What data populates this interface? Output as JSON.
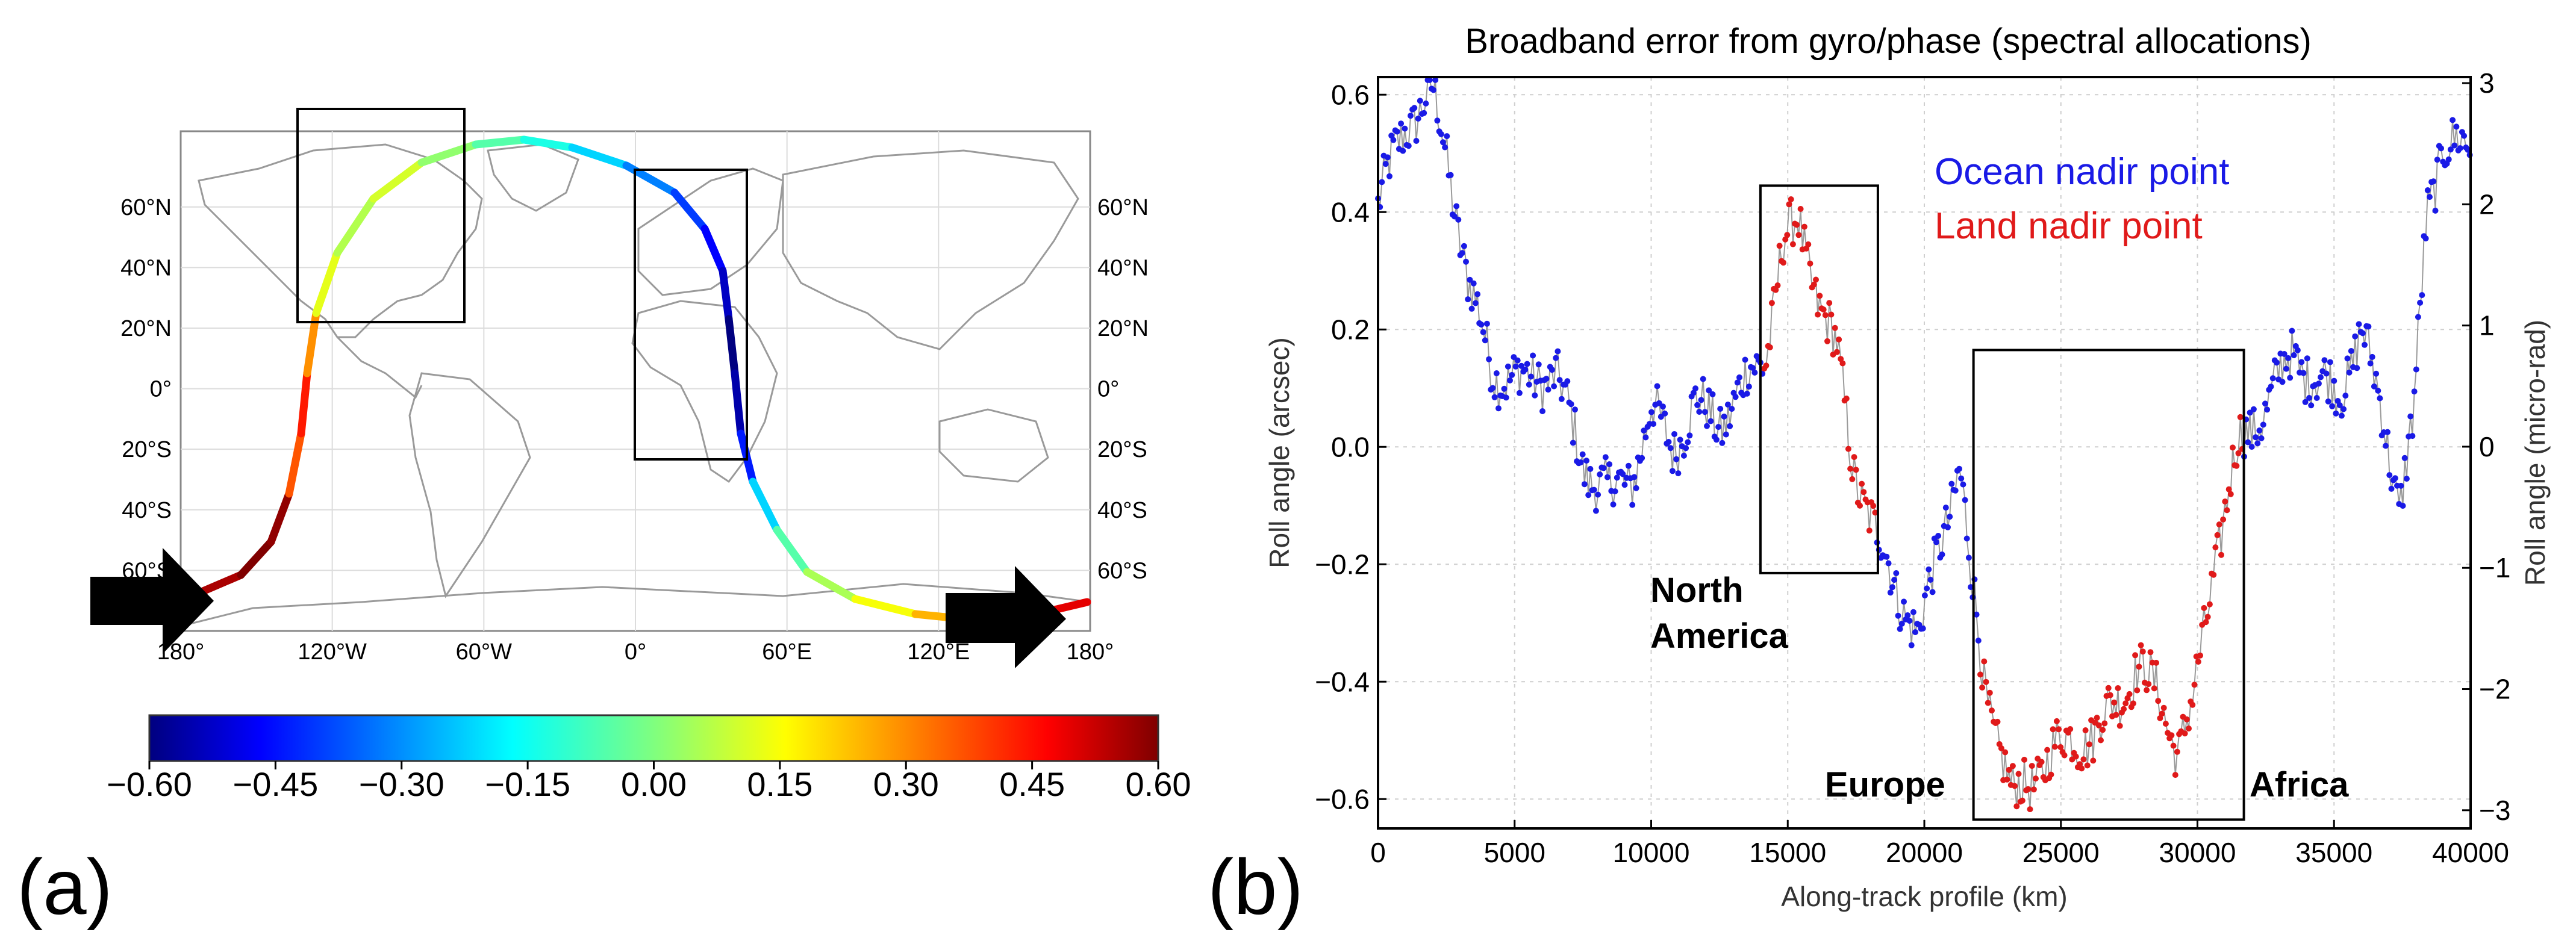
{
  "chart_data": [
    {
      "type": "map",
      "panel_label": "(a)",
      "lon_labels": [
        "180°",
        "120°W",
        "60°W",
        "0°",
        "60°E",
        "120°E",
        "180°"
      ],
      "lat_labels_left": [
        "60°N",
        "40°N",
        "20°N",
        "0°",
        "20°S",
        "40°S",
        "60°S"
      ],
      "lat_labels_right": [
        "60°N",
        "40°N",
        "20°N",
        "0°",
        "20°S",
        "40°S",
        "60°S"
      ],
      "colorbar": {
        "ticks": [
          "−0.60",
          "−0.45",
          "−0.30",
          "−0.15",
          "0.00",
          "0.15",
          "0.30",
          "0.45",
          "0.60"
        ],
        "range": [
          -0.6,
          0.6
        ],
        "colormap": "jet"
      },
      "track_values": [
        0.55,
        0.62,
        0.58,
        0.35,
        0.42,
        0.28,
        0.12,
        0.06,
        0.1,
        0.02,
        -0.05,
        -0.12,
        -0.2,
        -0.3,
        -0.38,
        -0.45,
        -0.52,
        -0.6,
        -0.55,
        -0.42,
        -0.2,
        -0.05,
        0.05,
        0.14,
        0.24,
        0.35,
        0.48,
        0.58
      ]
    },
    {
      "type": "line",
      "panel_label": "(b)",
      "title": "Broadband error from gyro/phase (spectral allocations)",
      "xlabel": "Along-track profile (km)",
      "ylabel": "Roll angle (arcsec)",
      "ylabel_right": "Roll angle (micro-rad)",
      "xlim": [
        0,
        40000
      ],
      "ylim": [
        -0.65,
        0.63
      ],
      "y2lim": [
        -3.15,
        3.05
      ],
      "x_ticks": [
        "0",
        "5000",
        "10000",
        "15000",
        "20000",
        "25000",
        "30000",
        "35000",
        "40000"
      ],
      "y_ticks": [
        "−0.6",
        "−0.4",
        "−0.2",
        "0.0",
        "0.2",
        "0.4",
        "0.6"
      ],
      "y2_ticks": [
        "−3",
        "−2",
        "−1",
        "0",
        "1",
        "2",
        "3"
      ],
      "grid": true,
      "legend": [
        "Ocean nadir point",
        "Land nadir point"
      ],
      "colors": {
        "ocean": "#1a1ae6",
        "land": "#e01a1a"
      },
      "annotations": [
        "North America",
        "Europe",
        "Africa"
      ],
      "region_boxes": [
        {
          "name": "North America",
          "x": [
            14000,
            18300
          ],
          "y": [
            -0.215,
            0.445
          ]
        },
        {
          "name": "Europe-Africa",
          "x": [
            21800,
            31700
          ],
          "y": [
            -0.635,
            0.165
          ]
        }
      ],
      "land_ranges": [
        [
          14100,
          18200
        ],
        [
          22000,
          31700
        ]
      ],
      "series_knots": {
        "x": [
          0,
          1000,
          2000,
          2500,
          3300,
          4200,
          5500,
          6500,
          7500,
          8500,
          9300,
          10000,
          10800,
          11600,
          12500,
          13500,
          14200,
          14800,
          15400,
          16200,
          16800,
          17400,
          18200,
          19000,
          19800,
          20600,
          21300,
          21700,
          22200,
          22700,
          23200,
          23800,
          24600,
          25400,
          26200,
          27000,
          27800,
          28600,
          29300,
          29800,
          30600,
          31500,
          32500,
          33500,
          34400,
          35200,
          36000,
          36800,
          37400,
          37900,
          38400,
          39000,
          40000
        ],
        "y": [
          0.41,
          0.55,
          0.6,
          0.5,
          0.28,
          0.13,
          0.11,
          0.13,
          -0.03,
          -0.08,
          -0.05,
          0.06,
          0.0,
          0.07,
          0.04,
          0.11,
          0.16,
          0.34,
          0.38,
          0.24,
          0.16,
          -0.03,
          -0.15,
          -0.24,
          -0.33,
          -0.15,
          -0.04,
          -0.22,
          -0.4,
          -0.5,
          -0.6,
          -0.57,
          -0.53,
          -0.49,
          -0.5,
          -0.43,
          -0.38,
          -0.42,
          -0.52,
          -0.45,
          -0.2,
          0.0,
          0.07,
          0.16,
          0.11,
          0.09,
          0.2,
          0.05,
          -0.1,
          0.04,
          0.4,
          0.52,
          0.5
        ]
      }
    }
  ],
  "panel_b_labels": {
    "north_line1": "North",
    "north_line2": "America"
  }
}
